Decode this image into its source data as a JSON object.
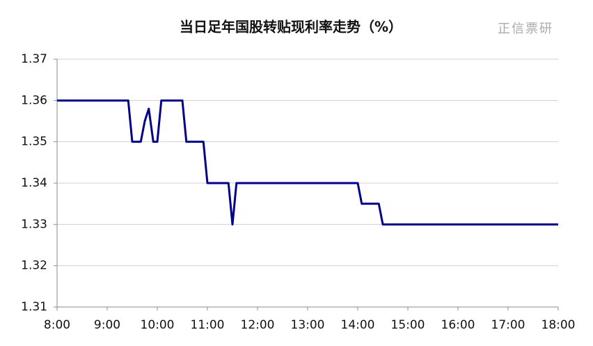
{
  "chart_data": {
    "type": "line",
    "title": "当日足年国股转贴现利率走势（%）",
    "watermark": "正信票研",
    "x": [
      8.0,
      9.42,
      9.5,
      9.67,
      9.75,
      9.83,
      9.92,
      10.0,
      10.08,
      10.5,
      10.58,
      10.92,
      11.0,
      11.42,
      11.5,
      11.58,
      14.0,
      14.08,
      14.42,
      14.5,
      18.0
    ],
    "series": [
      {
        "name": "当日足年国股转贴现利率",
        "color": "#00008b",
        "values": [
          1.36,
          1.36,
          1.35,
          1.35,
          1.355,
          1.358,
          1.35,
          1.35,
          1.36,
          1.36,
          1.35,
          1.35,
          1.34,
          1.34,
          1.33,
          1.34,
          1.34,
          1.335,
          1.335,
          1.33,
          1.33
        ]
      }
    ],
    "xlim": [
      8,
      18
    ],
    "xticks": [
      {
        "value": 8,
        "label": "8:00"
      },
      {
        "value": 9,
        "label": "9:00"
      },
      {
        "value": 10,
        "label": "10:00"
      },
      {
        "value": 11,
        "label": "11:00"
      },
      {
        "value": 12,
        "label": "12:00"
      },
      {
        "value": 13,
        "label": "13:00"
      },
      {
        "value": 14,
        "label": "14:00"
      },
      {
        "value": 15,
        "label": "15:00"
      },
      {
        "value": 16,
        "label": "16:00"
      },
      {
        "value": 17,
        "label": "17:00"
      },
      {
        "value": 18,
        "label": "18:00"
      }
    ],
    "ylim": [
      1.31,
      1.37
    ],
    "yticks": [
      1.31,
      1.32,
      1.33,
      1.34,
      1.35,
      1.36,
      1.37
    ],
    "grid": true
  }
}
